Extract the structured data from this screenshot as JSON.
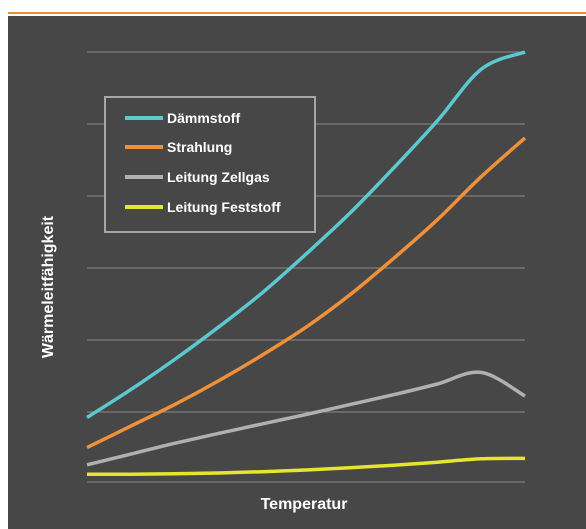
{
  "colors": {
    "page_background": "#ffffff",
    "plot_background": "#474747",
    "top_rule": "#f08c2e",
    "gridline": "#8a8a8a",
    "legend_border": "#a6a6a6",
    "text": "#ffffff"
  },
  "chart_data": {
    "type": "line",
    "title": "",
    "xlabel": "Temperatur",
    "ylabel": "Wärmeleitfähigkeit",
    "xlim": [
      0,
      1
    ],
    "ylim": [
      0,
      1
    ],
    "grid": "horizontal",
    "tick_labels": false,
    "legend_position": "top-left",
    "x": [
      0,
      0.1,
      0.2,
      0.3,
      0.4,
      0.5,
      0.6,
      0.7,
      0.8,
      0.9,
      1.0
    ],
    "series": [
      {
        "name": "Dämmstoff",
        "color": "#5cc8d0",
        "values": [
          0.15,
          0.215,
          0.285,
          0.36,
          0.44,
          0.53,
          0.625,
          0.73,
          0.84,
          0.96,
          1.0
        ]
      },
      {
        "name": "Strahlung",
        "color": "#f0913a",
        "values": [
          0.08,
          0.13,
          0.18,
          0.235,
          0.295,
          0.36,
          0.435,
          0.52,
          0.61,
          0.71,
          0.8
        ]
      },
      {
        "name": "Leitung Zellgas",
        "color": "#b0b0b0",
        "values": [
          0.04,
          0.065,
          0.09,
          0.113,
          0.135,
          0.157,
          0.18,
          0.203,
          0.228,
          0.255,
          0.2
        ]
      },
      {
        "name": "Leitung Feststoff",
        "color": "#e6e62a",
        "values": [
          0.018,
          0.018,
          0.019,
          0.021,
          0.024,
          0.028,
          0.033,
          0.039,
          0.046,
          0.054,
          0.055
        ]
      }
    ]
  }
}
